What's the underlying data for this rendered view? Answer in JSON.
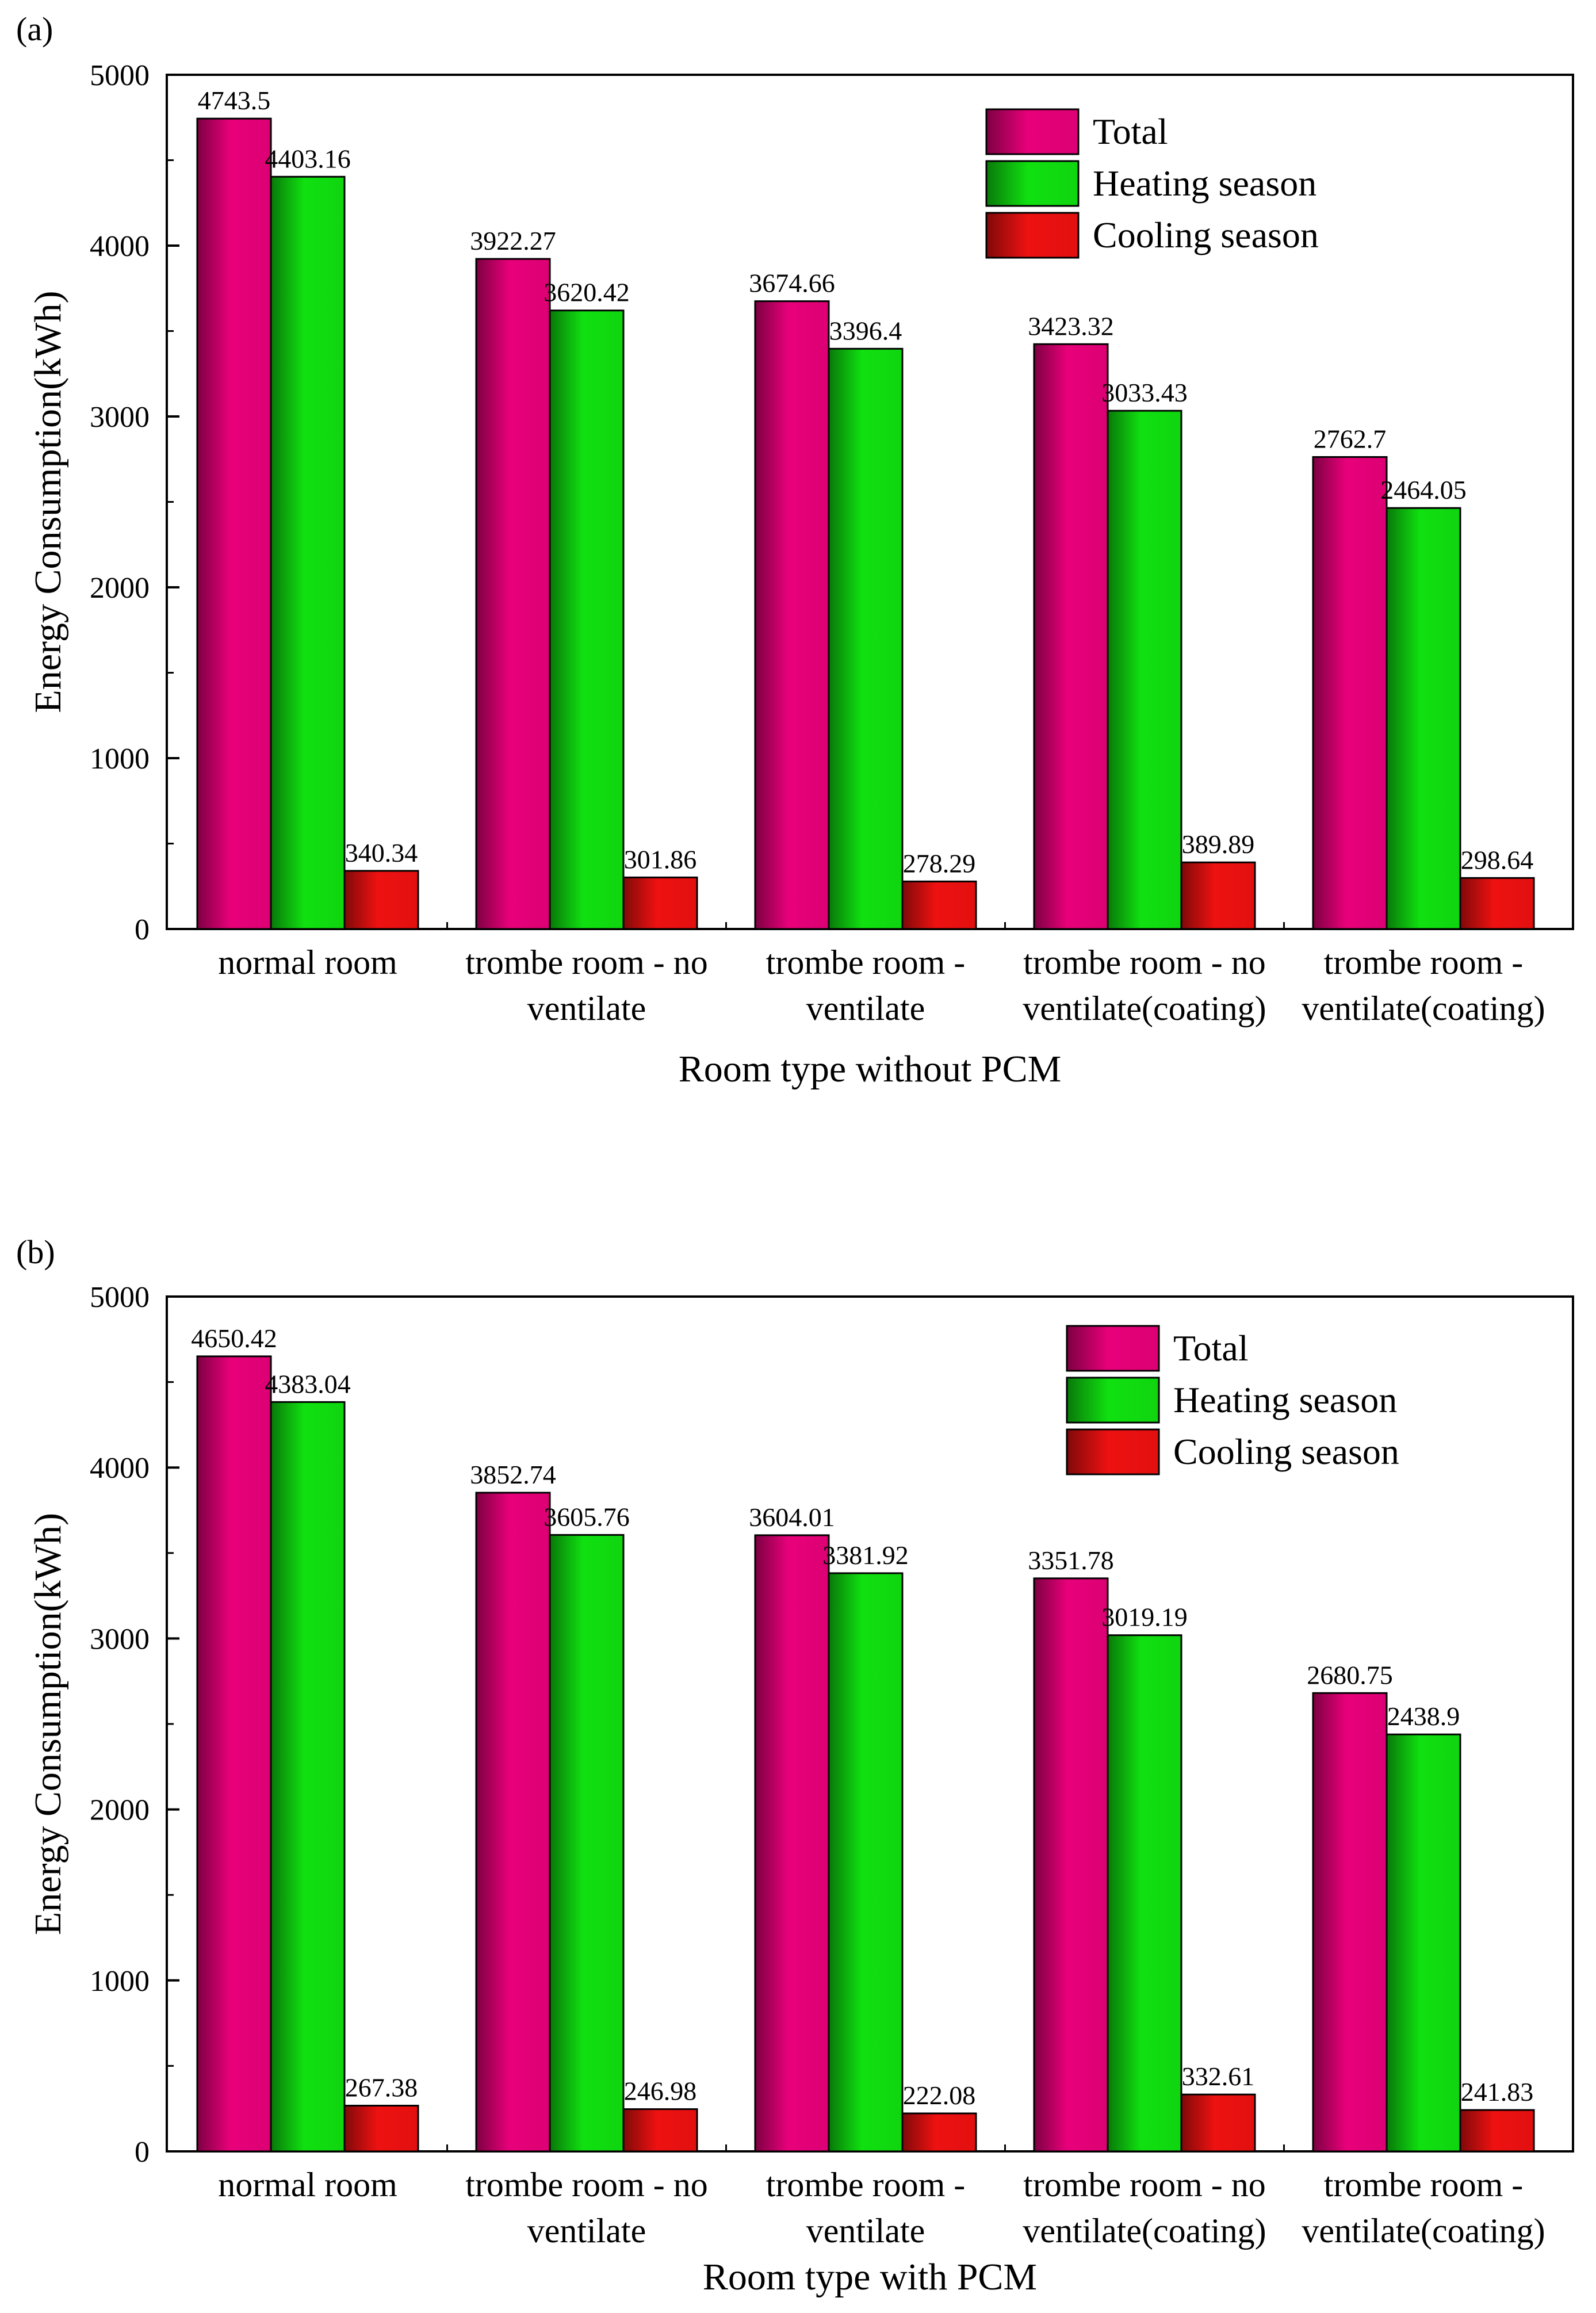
{
  "colors": {
    "total": "#e8007a",
    "heating": "#10e010",
    "cooling": "#ee1111",
    "bar_outline": "#000000"
  },
  "chart_data": [
    {
      "panel_label": "(a)",
      "type": "bar",
      "xlabel": "Room type without PCM",
      "ylabel": "Energy Consumption(kWh)",
      "ylim": [
        0,
        5000
      ],
      "yticks": [
        0,
        1000,
        2000,
        3000,
        4000,
        5000
      ],
      "grid": false,
      "legend_position": "top-right",
      "categories": [
        [
          "normal room"
        ],
        [
          "trombe room - no",
          "ventilate"
        ],
        [
          "trombe room -",
          "ventilate"
        ],
        [
          "trombe room - no",
          "ventilate(coating)"
        ],
        [
          "trombe room -",
          "ventilate(coating)"
        ]
      ],
      "series": [
        {
          "name": "Total",
          "values": [
            4743.5,
            3922.27,
            3674.66,
            3423.32,
            2762.7
          ],
          "labels": [
            "4743.5",
            "3922.27",
            "3674.66",
            "3423.32",
            "2762.7"
          ]
        },
        {
          "name": "Heating season",
          "values": [
            4403.16,
            3620.42,
            3396.4,
            3033.43,
            2464.05
          ],
          "labels": [
            "4403.16",
            "3620.42",
            "3396.4",
            "3033.43",
            "2464.05"
          ]
        },
        {
          "name": "Cooling season",
          "values": [
            340.34,
            301.86,
            278.29,
            389.89,
            298.64
          ],
          "labels": [
            "340.34",
            "301.86",
            "278.29",
            "389.89",
            "298.64"
          ]
        }
      ]
    },
    {
      "panel_label": "(b)",
      "type": "bar",
      "xlabel": "Room type with PCM",
      "ylabel": "Energy Consumption(kWh)",
      "ylim": [
        0,
        5000
      ],
      "yticks": [
        0,
        1000,
        2000,
        3000,
        4000,
        5000
      ],
      "grid": false,
      "legend_position": "top-right",
      "categories": [
        [
          "normal room"
        ],
        [
          "trombe room - no",
          "ventilate"
        ],
        [
          "trombe room -",
          "ventilate"
        ],
        [
          "trombe room - no",
          "ventilate(coating)"
        ],
        [
          "trombe room -",
          "ventilate(coating)"
        ]
      ],
      "series": [
        {
          "name": "Total",
          "values": [
            4650.42,
            3852.74,
            3604.01,
            3351.78,
            2680.75
          ],
          "labels": [
            "4650.42",
            "3852.74",
            "3604.01",
            "3351.78",
            "2680.75"
          ]
        },
        {
          "name": "Heating season",
          "values": [
            4383.04,
            3605.76,
            3381.92,
            3019.19,
            2438.9
          ],
          "labels": [
            "4383.04",
            "3605.76",
            "3381.92",
            "3019.19",
            "2438.9"
          ]
        },
        {
          "name": "Cooling season",
          "values": [
            267.38,
            246.98,
            222.08,
            332.61,
            241.83
          ],
          "labels": [
            "267.38",
            "246.98",
            "222.08",
            "332.61",
            "241.83"
          ]
        }
      ]
    }
  ]
}
